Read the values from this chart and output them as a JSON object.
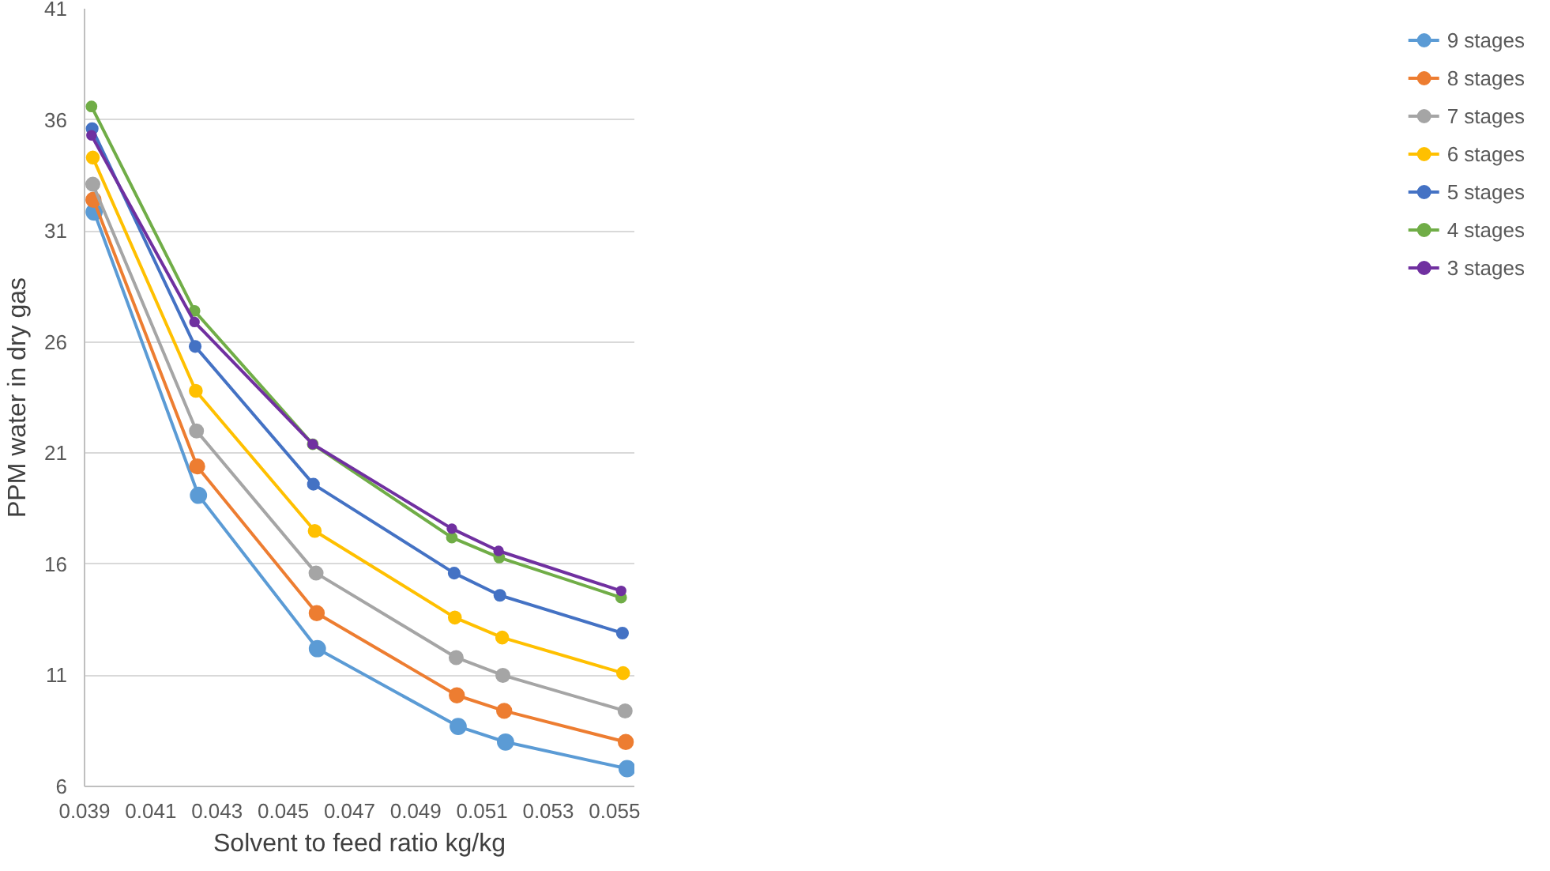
{
  "chart_data": {
    "type": "line",
    "xlabel": "Solvent to feed ratio kg/kg",
    "ylabel": "PPM water in dry gas",
    "xlim": [
      0.039,
      0.0556
    ],
    "xticks": [
      {
        "value": 0.039,
        "label": "0.039"
      },
      {
        "value": 0.041,
        "label": "0.041"
      },
      {
        "value": 0.043,
        "label": "0.043"
      },
      {
        "value": 0.045,
        "label": "0.045"
      },
      {
        "value": 0.047,
        "label": "0.047"
      },
      {
        "value": 0.049,
        "label": "0.049"
      },
      {
        "value": 0.051,
        "label": "0.051"
      },
      {
        "value": 0.053,
        "label": "0.053"
      },
      {
        "value": 0.055,
        "label": "0.055"
      }
    ],
    "ylim": [
      6,
      41
    ],
    "yticks": [
      6,
      11,
      16,
      21,
      26,
      31,
      36,
      41
    ],
    "grid": "y",
    "legend": "right",
    "marker": "circle",
    "line_style": "solid",
    "series": [
      {
        "name": "9 stages",
        "color": "#5b9bd5",
        "x": [
          0.03929,
          0.04244,
          0.04603,
          0.05028,
          0.05171,
          0.05538
        ],
        "values": [
          31.85,
          19.1,
          12.2,
          8.7,
          8.0,
          6.8
        ]
      },
      {
        "name": "8 stages",
        "color": "#ed7d31",
        "x": [
          0.03927,
          0.0424,
          0.04601,
          0.05024,
          0.05167,
          0.05534
        ],
        "values": [
          32.4,
          20.4,
          13.8,
          10.1,
          9.4,
          8.0
        ]
      },
      {
        "name": "7 stages",
        "color": "#a5a5a5",
        "x": [
          0.03925,
          0.04238,
          0.04599,
          0.05022,
          0.05163,
          0.05532
        ],
        "values": [
          33.1,
          22.0,
          15.6,
          11.8,
          11.0,
          9.4
        ]
      },
      {
        "name": "6 stages",
        "color": "#ffc000",
        "x": [
          0.03925,
          0.04236,
          0.04595,
          0.05018,
          0.05161,
          0.05526
        ],
        "values": [
          34.3,
          23.8,
          17.5,
          13.6,
          12.7,
          11.1
        ]
      },
      {
        "name": "5 stages",
        "color": "#4472c4",
        "x": [
          0.03923,
          0.04234,
          0.04591,
          0.05016,
          0.05154,
          0.05524
        ],
        "values": [
          35.6,
          25.8,
          19.6,
          15.6,
          14.6,
          12.9
        ]
      },
      {
        "name": "4 stages",
        "color": "#70ad47",
        "x": [
          0.03921,
          0.04232,
          0.04589,
          0.05009,
          0.05152,
          0.0552
        ],
        "values": [
          36.6,
          27.4,
          21.4,
          17.2,
          16.3,
          14.5
        ]
      },
      {
        "name": "3 stages",
        "color": "#7030a0",
        "x": [
          0.03921,
          0.04232,
          0.04589,
          0.05009,
          0.0515,
          0.0552
        ],
        "values": [
          35.3,
          26.9,
          21.4,
          17.6,
          16.6,
          14.8
        ]
      }
    ]
  }
}
